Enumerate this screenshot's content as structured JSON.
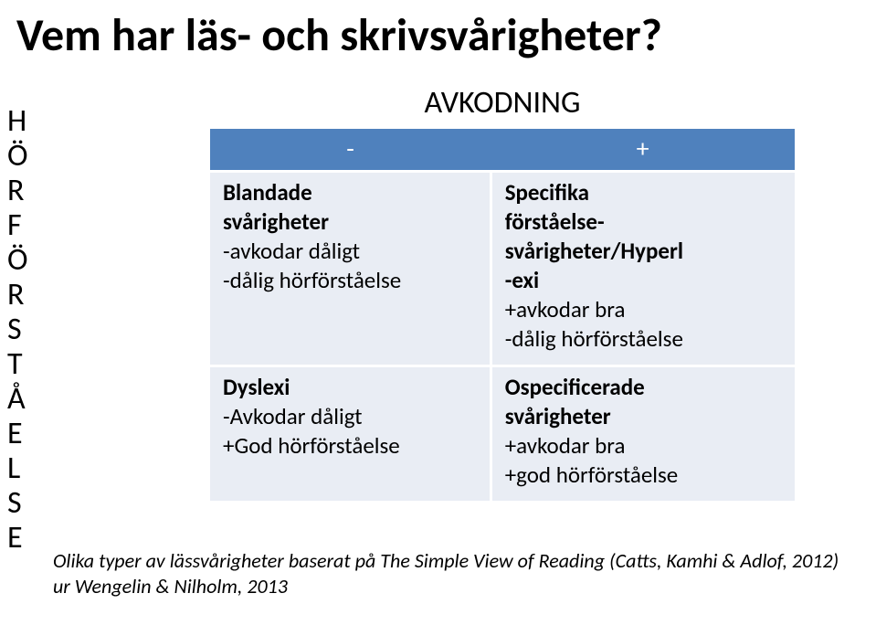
{
  "title": "Vem har läs- och skrivsvårigheter?",
  "vertical_label": "H\nÖ\nR\nF\nÖ\nR\nS\nT\nÅ\nE\nL\nS\nE",
  "top_label": "AVKODNING",
  "matrix": {
    "type": "table",
    "header_bg": "#4f81bd",
    "header_fg": "#ffffff",
    "cell_bg": "#e9edf4",
    "cell_fg": "#000000",
    "columns": [
      {
        "label": "-",
        "key": "minus"
      },
      {
        "label": "+",
        "key": "plus"
      }
    ],
    "rows": [
      {
        "minus": {
          "title_lines": [
            "Blandade",
            "svårigheter"
          ],
          "lines": [
            "-avkodar dåligt",
            "-dålig hörförståelse"
          ]
        },
        "plus": {
          "title_lines": [
            "Specifika",
            "förståelse-",
            "svårigheter/Hyperl",
            "-exi"
          ],
          "lines": [
            "+avkodar bra",
            "-dålig hörförståelse"
          ]
        }
      },
      {
        "minus": {
          "title_lines": [
            "Dyslexi"
          ],
          "lines": [
            "-Avkodar dåligt",
            "+God hörförståelse"
          ]
        },
        "plus": {
          "title_lines": [
            "Ospecificerade",
            "svårigheter"
          ],
          "lines": [
            "+avkodar bra",
            "+god hörförståelse"
          ]
        }
      }
    ]
  },
  "caption_line1": "Olika typer av lässvårigheter baserat på The Simple View of Reading (Catts, Kamhi & Adlof, 2012)",
  "caption_line2": "ur Wengelin & Nilholm, 2013"
}
